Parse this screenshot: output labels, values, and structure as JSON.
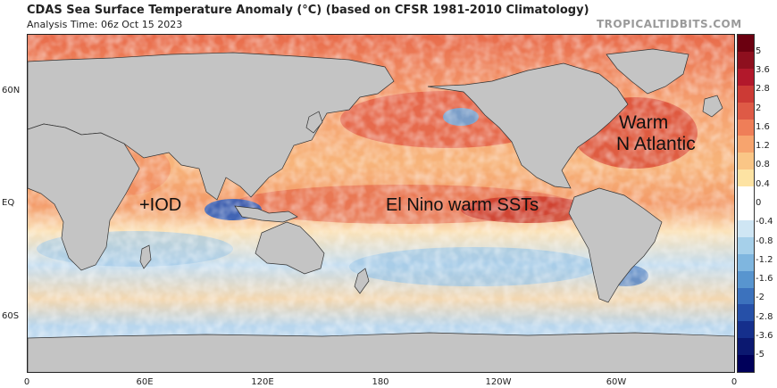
{
  "header": {
    "title": "CDAS Sea Surface Temperature Anomaly (°C) (based on CFSR 1981-2010 Climatology)",
    "analysis_time": "Analysis Time: 06z Oct 15 2023",
    "source": "TROPICALTIDBITS.COM"
  },
  "map": {
    "lat_labels": [
      "60N",
      "EQ",
      "60S"
    ],
    "lon_labels": [
      "0",
      "60E",
      "120E",
      "180",
      "120W",
      "60W",
      "0"
    ]
  },
  "colorbar": {
    "labels": [
      "5",
      "3.6",
      "2.8",
      "2",
      "1.6",
      "1.2",
      "0.8",
      "0.4",
      "0",
      "-0.4",
      "-0.8",
      "-1.2",
      "-1.6",
      "-2",
      "-2.8",
      "-3.6",
      "-5"
    ],
    "colors": [
      "#6b0010",
      "#8e0f1e",
      "#b2182b",
      "#cc3a35",
      "#de5a46",
      "#ef7e58",
      "#f7a46e",
      "#fac686",
      "#fde3a3",
      "#ffffff",
      "#ffffff",
      "#cfe6f4",
      "#a6d0ea",
      "#7fb6df",
      "#5895cf",
      "#3c72bd",
      "#2650a8",
      "#152f8c",
      "#0b1870",
      "#00005a"
    ]
  },
  "annotations": {
    "iod": "+IOD",
    "el_nino": "El Nino warm SSTs",
    "warm_atlantic": [
      "Warm",
      "N Atlantic"
    ]
  }
}
